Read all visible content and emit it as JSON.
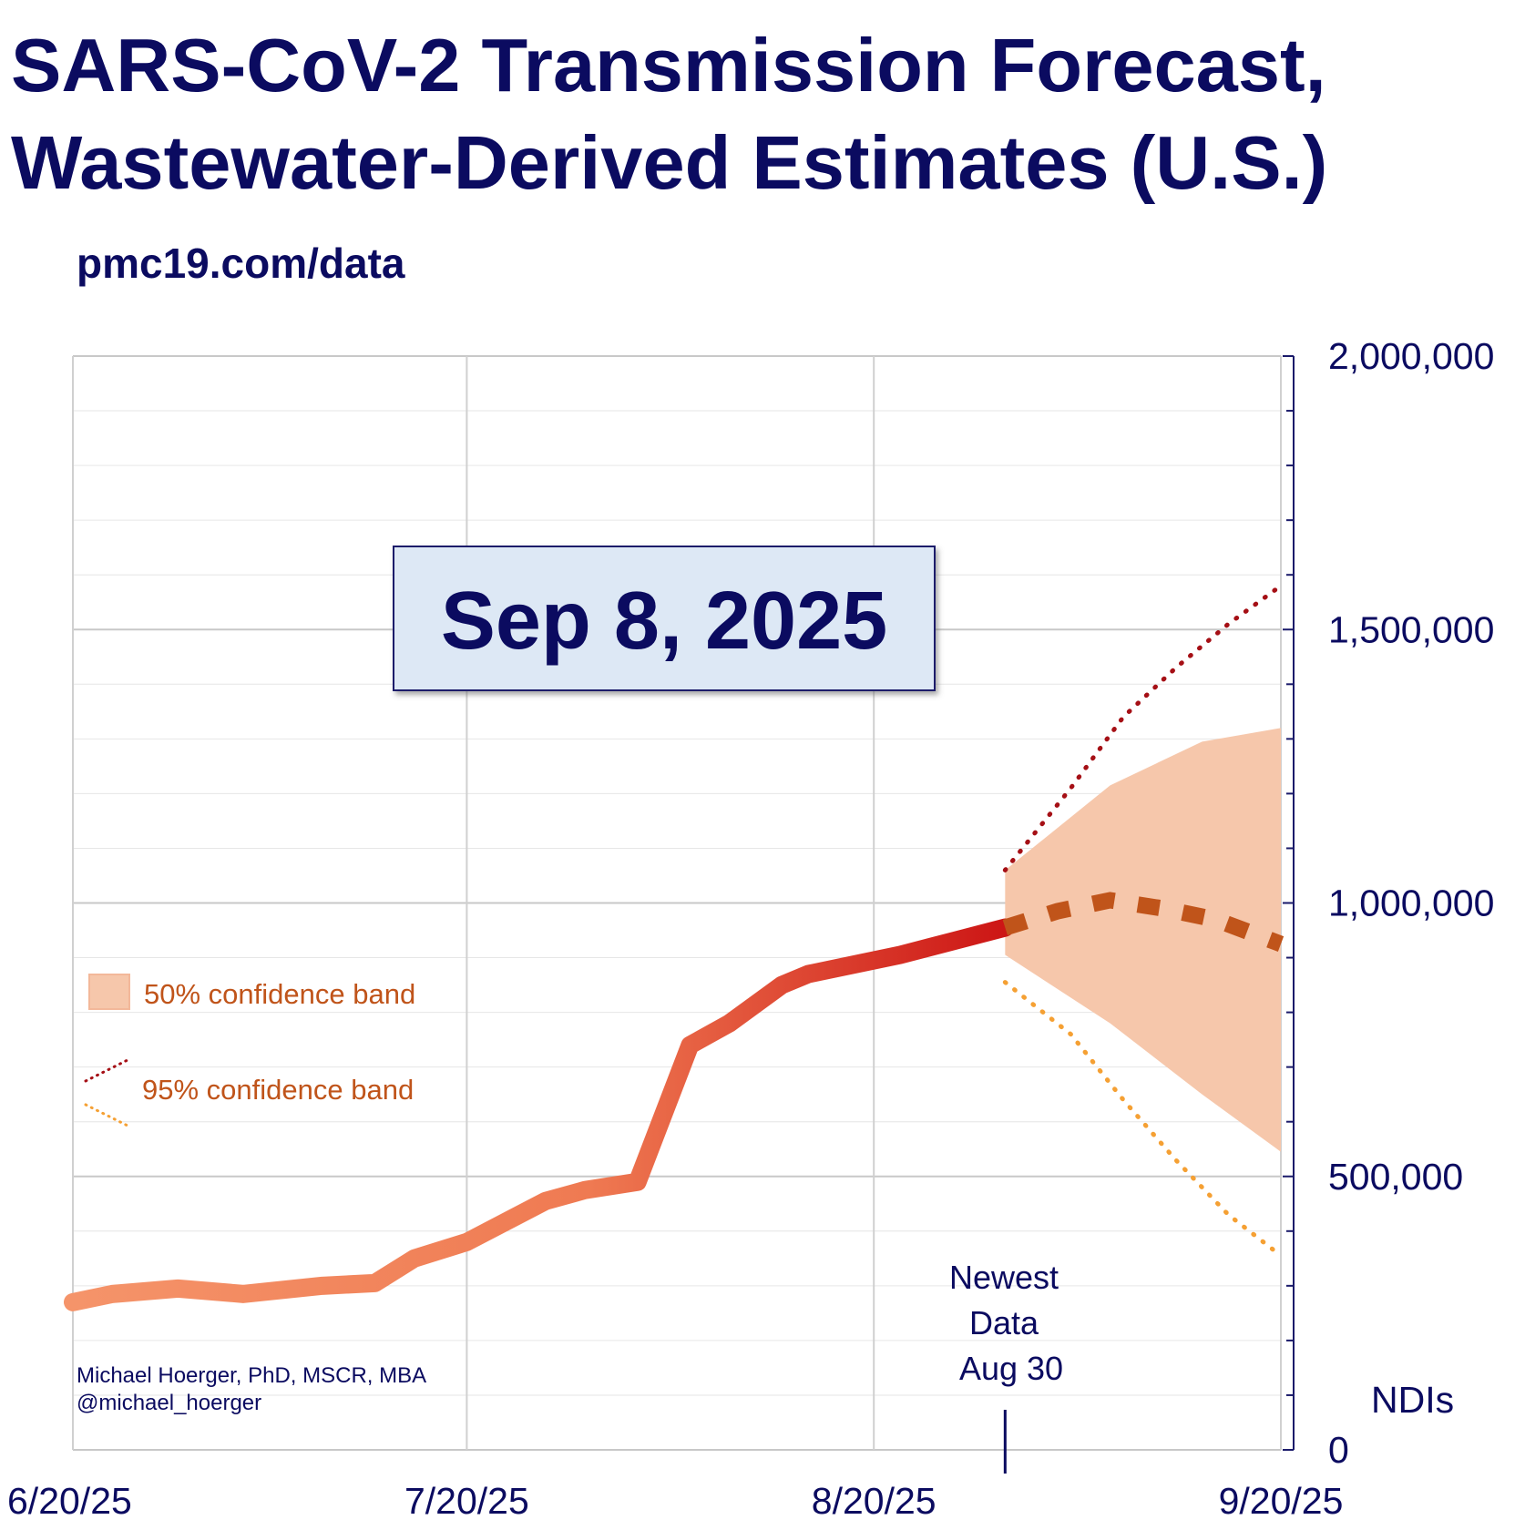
{
  "title_lines": [
    "SARS-CoV-2 Transmission Forecast,",
    "Wastewater-Derived Estimates (U.S.)"
  ],
  "source": "pmc19.com/data",
  "date_box": "Sep 8, 2025",
  "credit": [
    "Michael Hoerger, PhD, MSCR, MBA",
    "@michael_hoerger"
  ],
  "newest_data_note": [
    "Newest",
    "Data",
    "Aug 30"
  ],
  "colors": {
    "title": "#0b0b60",
    "actual_early": "#f5946a",
    "actual_late": "#cc1414",
    "forecast": "#c0541a",
    "band50": "#f6c7ab",
    "band95_upper": "#a50f15",
    "band95_lower": "#f5a033",
    "date_box_fill": "#dde8f5"
  },
  "chart_data": {
    "type": "line",
    "title": "SARS-CoV-2 Transmission Forecast, Wastewater-Derived Estimates (U.S.)",
    "ylabel": "NDIs",
    "ylim": [
      0,
      2000000
    ],
    "y_ticks": [
      0,
      500000,
      1000000,
      1500000,
      2000000
    ],
    "y_tick_labels": [
      "0",
      "500,000",
      "1,000,000",
      "1,500,000",
      "2,000,000"
    ],
    "xlim": [
      "2025-06-20",
      "2025-09-20"
    ],
    "x_ticks": [
      "2025-06-20",
      "2025-07-20",
      "2025-08-20",
      "2025-09-20"
    ],
    "x_tick_labels": [
      "6/20/25",
      "7/20/25",
      "8/20/25",
      "9/20/25"
    ],
    "grid": true,
    "newest_data_date": "2025-08-30",
    "actual": {
      "x": [
        "2025-06-20",
        "2025-06-23",
        "2025-06-28",
        "2025-07-03",
        "2025-07-09",
        "2025-07-13",
        "2025-07-16",
        "2025-07-20",
        "2025-07-24",
        "2025-07-26",
        "2025-07-29",
        "2025-08-02",
        "2025-08-06",
        "2025-08-09",
        "2025-08-13",
        "2025-08-15",
        "2025-08-19",
        "2025-08-22",
        "2025-08-26",
        "2025-08-30"
      ],
      "y": [
        270000,
        285000,
        295000,
        285000,
        300000,
        305000,
        350000,
        380000,
        430000,
        455000,
        475000,
        490000,
        740000,
        780000,
        850000,
        870000,
        890000,
        905000,
        930000,
        955000
      ]
    },
    "forecast": {
      "x": [
        "2025-08-30",
        "2025-09-03",
        "2025-09-07",
        "2025-09-11",
        "2025-09-15",
        "2025-09-20"
      ],
      "y": [
        955000,
        985000,
        1005000,
        990000,
        970000,
        925000
      ]
    },
    "band50": {
      "x": [
        "2025-08-30",
        "2025-09-07",
        "2025-09-14",
        "2025-09-20"
      ],
      "lower": [
        905000,
        780000,
        650000,
        545000
      ],
      "upper": [
        1060000,
        1215000,
        1295000,
        1320000
      ]
    },
    "band95": {
      "x": [
        "2025-08-30",
        "2025-09-04",
        "2025-09-08",
        "2025-09-12",
        "2025-09-16",
        "2025-09-20"
      ],
      "lower": [
        855000,
        760000,
        640000,
        530000,
        430000,
        355000
      ],
      "upper": [
        1060000,
        1210000,
        1340000,
        1430000,
        1510000,
        1580000
      ]
    },
    "legend": [
      {
        "label": "50% confidence band",
        "kind": "band"
      },
      {
        "label": "95% confidence band",
        "kind": "dotted"
      }
    ],
    "legend_position": "left-middle"
  }
}
